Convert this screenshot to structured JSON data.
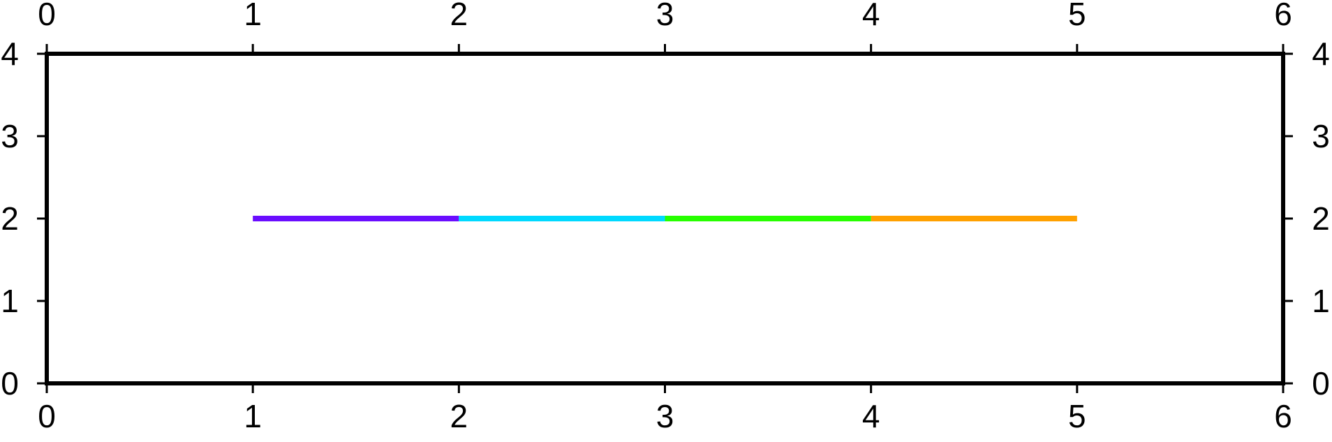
{
  "chart_data": {
    "type": "line",
    "title": "",
    "xlabel": "",
    "ylabel": "",
    "xlim": [
      0,
      6
    ],
    "ylim": [
      0,
      4
    ],
    "x_ticks": [
      0,
      1,
      2,
      3,
      4,
      5,
      6
    ],
    "y_ticks": [
      0,
      1,
      2,
      3,
      4
    ],
    "x_tick_labels": [
      "0",
      "1",
      "2",
      "3",
      "4",
      "5",
      "6"
    ],
    "y_tick_labels": [
      "0",
      "1",
      "2",
      "3",
      "4"
    ],
    "grid": false,
    "frame": "all four sides, ticks and labels on all sides",
    "segments": [
      {
        "x": [
          1,
          2
        ],
        "y": [
          2,
          2
        ],
        "color": "#6a0dff"
      },
      {
        "x": [
          2,
          3
        ],
        "y": [
          2,
          2
        ],
        "color": "#00d9ff"
      },
      {
        "x": [
          3,
          4
        ],
        "y": [
          2,
          2
        ],
        "color": "#26ff00"
      },
      {
        "x": [
          4,
          5
        ],
        "y": [
          2,
          2
        ],
        "color": "#ffa000"
      }
    ]
  }
}
